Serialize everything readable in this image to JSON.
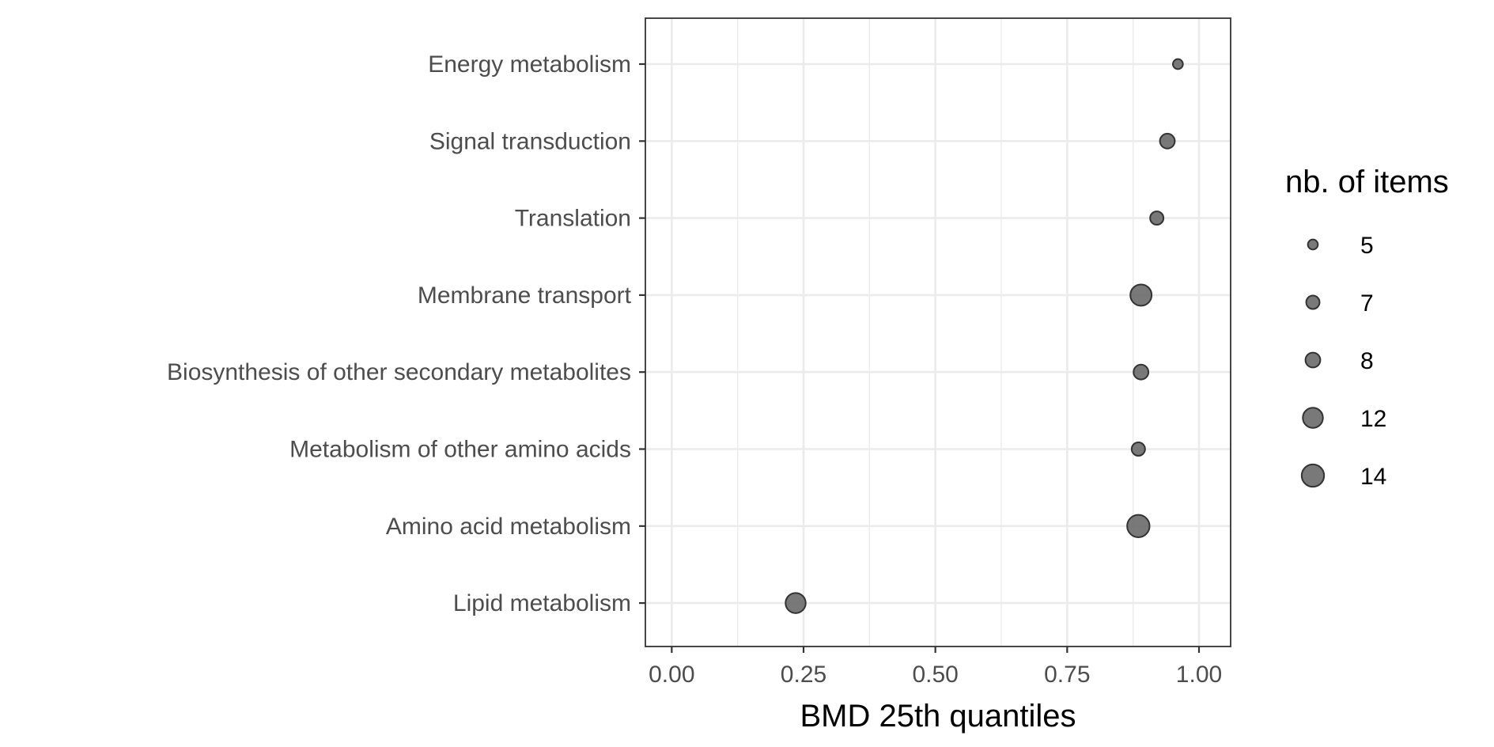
{
  "chart_data": {
    "type": "scatter",
    "title": "",
    "xlabel": "BMD 25th quantiles",
    "ylabel": "",
    "xlim": [
      -0.05,
      1.06
    ],
    "xticks": [
      "0.00",
      "0.25",
      "0.50",
      "0.75",
      "1.00"
    ],
    "grid": true,
    "categories": [
      "Energy metabolism",
      "Signal transduction",
      "Translation",
      "Membrane transport",
      "Biosynthesis of other secondary metabolites",
      "Metabolism of other amino acids",
      "Amino acid metabolism",
      "Lipid metabolism"
    ],
    "points": [
      {
        "category": "Energy metabolism",
        "x": 0.96,
        "size": 5
      },
      {
        "category": "Signal transduction",
        "x": 0.94,
        "size": 8
      },
      {
        "category": "Translation",
        "x": 0.92,
        "size": 7
      },
      {
        "category": "Membrane transport",
        "x": 0.89,
        "size": 13
      },
      {
        "category": "Biosynthesis of other secondary metabolites",
        "x": 0.89,
        "size": 8
      },
      {
        "category": "Metabolism of other amino acids",
        "x": 0.885,
        "size": 7
      },
      {
        "category": "Amino acid metabolism",
        "x": 0.885,
        "size": 14
      },
      {
        "category": "Lipid metabolism",
        "x": 0.235,
        "size": 12
      }
    ],
    "legend": {
      "title": "nb. of items",
      "placement": "right",
      "entries": [
        {
          "label": "5",
          "size": 5
        },
        {
          "label": "7",
          "size": 7
        },
        {
          "label": "8",
          "size": 8
        },
        {
          "label": "12",
          "size": 12
        },
        {
          "label": "14",
          "size": 14
        }
      ]
    },
    "colors": {
      "point_fill": "#666666",
      "point_stroke": "#333333",
      "grid": "#ebebeb",
      "panel_border": "#333333"
    }
  }
}
